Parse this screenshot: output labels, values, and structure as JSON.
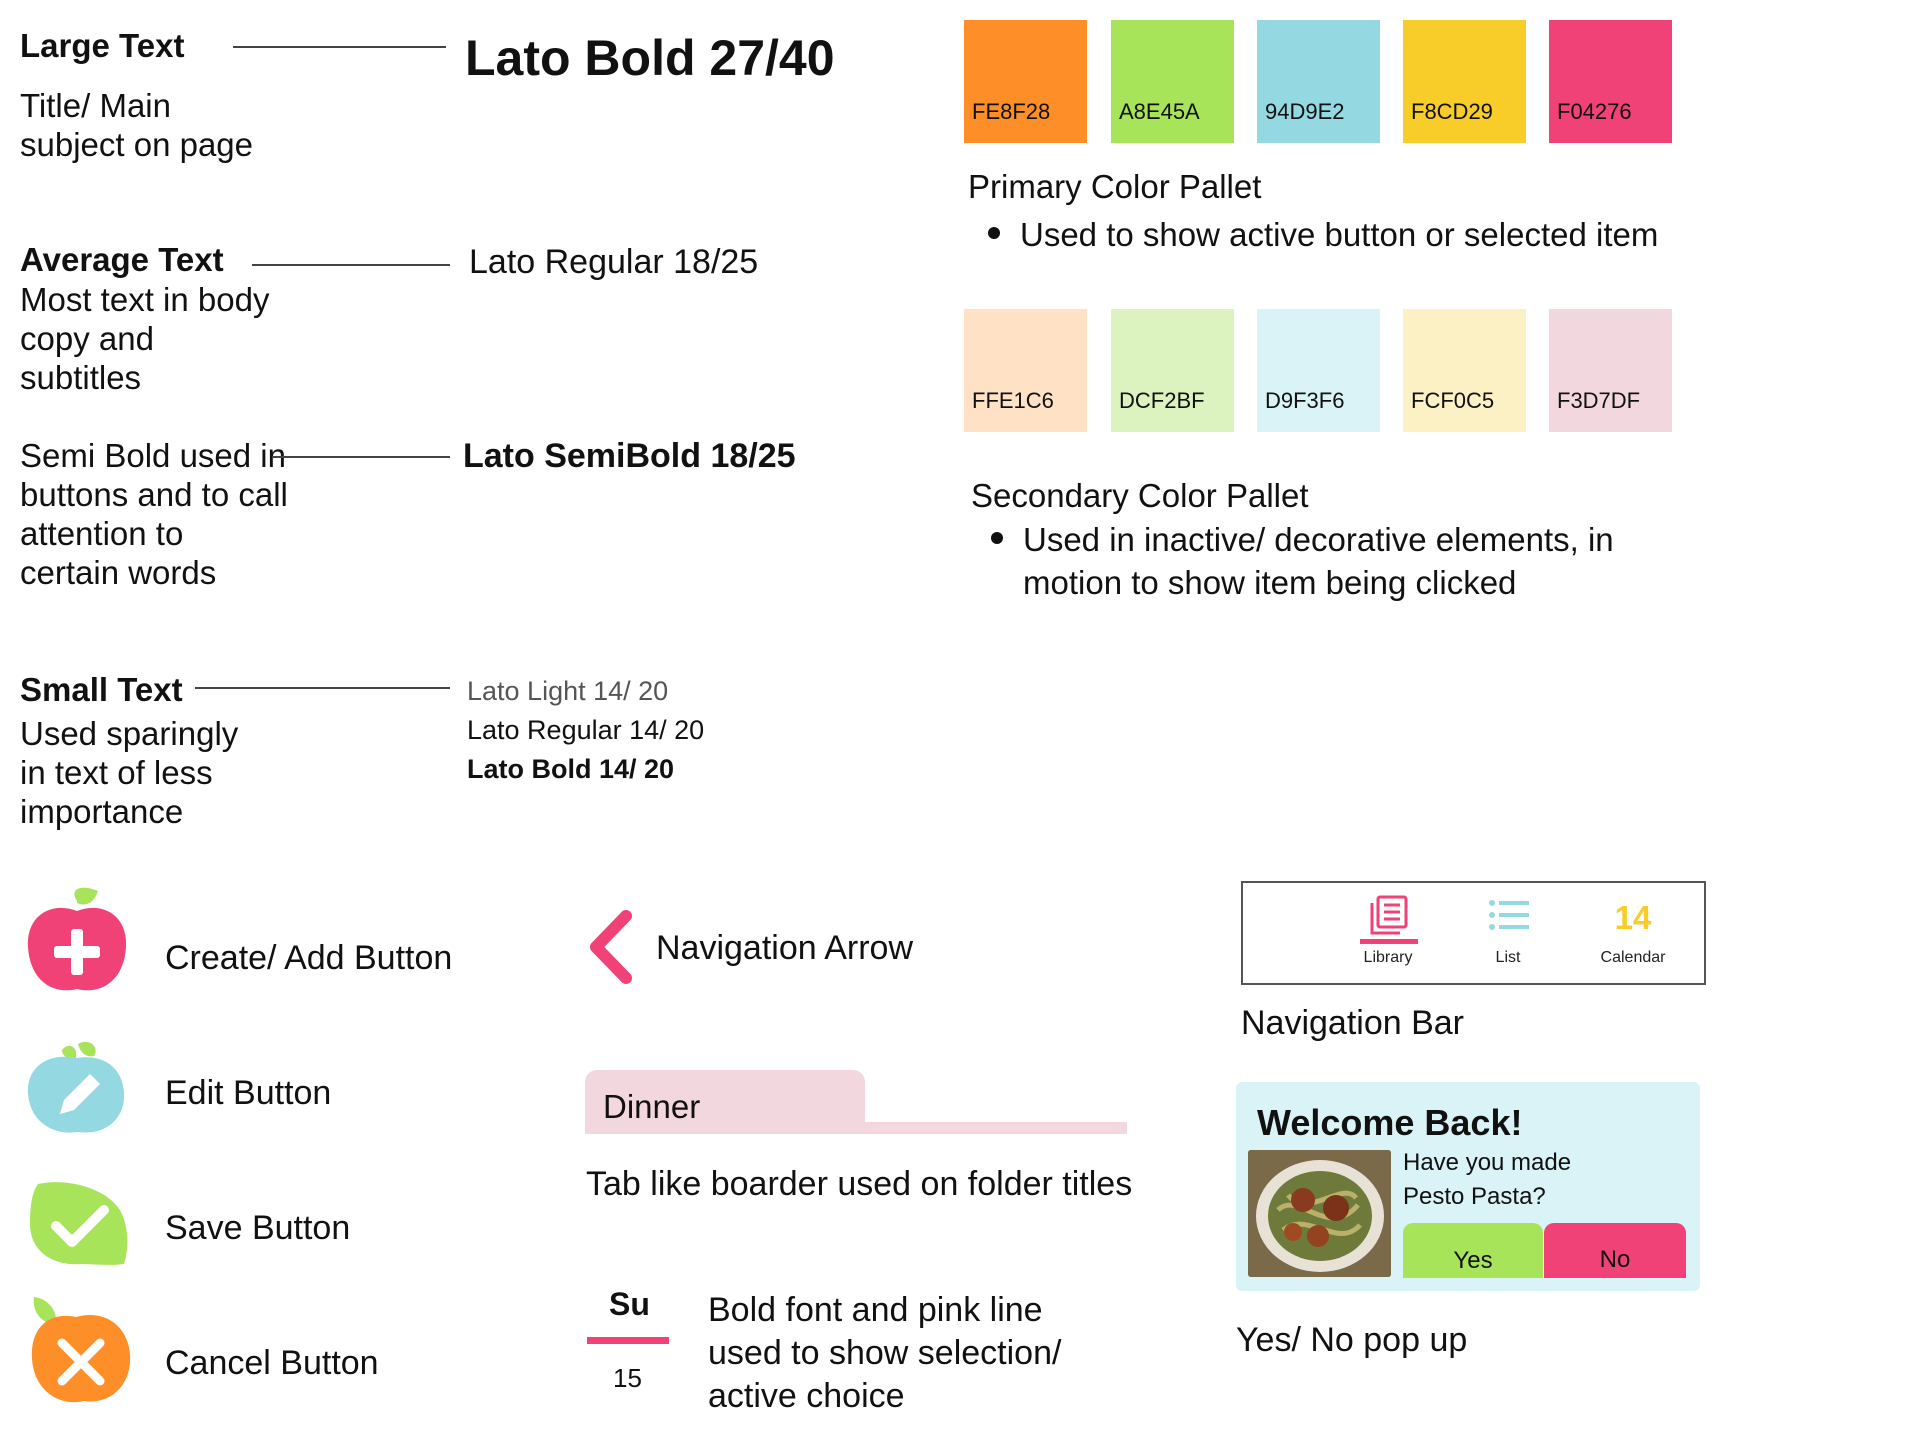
{
  "typography": {
    "large": {
      "title": "Large Text",
      "desc": "Title/ Main subject on page",
      "spec": "Lato Bold 27/40"
    },
    "average": {
      "title": "Average Text",
      "desc": "Most text in body copy and subtitles",
      "spec": "Lato Regular 18/25"
    },
    "semibold": {
      "desc": "Semi Bold used in buttons and to call attention to certain words",
      "spec": "Lato SemiBold 18/25"
    },
    "small": {
      "title": "Small Text",
      "desc": "Used sparingly in text of less importance",
      "spec_light": "Lato Light 14/ 20",
      "spec_regular": "Lato Regular 14/ 20",
      "spec_bold": "Lato Bold 14/ 20"
    }
  },
  "primary_palette": {
    "heading": "Primary Color Pallet",
    "bullet": "Used to show active button or selected item",
    "swatches": [
      {
        "hex": "FE8F28",
        "color": "#FE8F28"
      },
      {
        "hex": "A8E45A",
        "color": "#A8E45A"
      },
      {
        "hex": "94D9E2",
        "color": "#94D9E2"
      },
      {
        "hex": "F8CD29",
        "color": "#F8CD29"
      },
      {
        "hex": "F04276",
        "color": "#F04276"
      }
    ]
  },
  "secondary_palette": {
    "heading": "Secondary Color Pallet",
    "bullet_line1": "Used in inactive/ decorative elements, in",
    "bullet_line2": "motion to show item being clicked",
    "swatches": [
      {
        "hex": "FFE1C6",
        "color": "#FFE1C6"
      },
      {
        "hex": "DCF2BF",
        "color": "#DCF2BF"
      },
      {
        "hex": "D9F3F6",
        "color": "#D9F3F6"
      },
      {
        "hex": "FCF0C5",
        "color": "#FCF0C5"
      },
      {
        "hex": "F3D7DF",
        "color": "#F3D7DF"
      }
    ]
  },
  "buttons": {
    "create": {
      "label": "Create/ Add Button",
      "icon": "plus-apple-icon"
    },
    "edit": {
      "label": "Edit Button",
      "icon": "pencil-berry-icon"
    },
    "save": {
      "label": "Save Button",
      "icon": "check-lime-icon"
    },
    "cancel": {
      "label": "Cancel Button",
      "icon": "x-orange-icon"
    }
  },
  "navigation_arrow": {
    "label": "Navigation Arrow",
    "icon": "chevron-left-icon"
  },
  "tab": {
    "tab_label": "Dinner",
    "caption": "Tab like boarder used on folder titles"
  },
  "selection": {
    "day": "Su",
    "date": "15",
    "caption_line1": "Bold font and pink line",
    "caption_line2": "used to show selection/",
    "caption_line3": "active choice"
  },
  "navbar": {
    "caption": "Navigation Bar",
    "items": [
      {
        "label": "Library",
        "icon": "library-icon"
      },
      {
        "label": "List",
        "icon": "list-icon"
      },
      {
        "label": "Calendar",
        "icon": "calendar-icon",
        "number": "14"
      }
    ]
  },
  "popup": {
    "title": "Welcome Back!",
    "question_line1": "Have you made",
    "question_line2": "Pesto Pasta?",
    "yes": "Yes",
    "no": "No",
    "caption": "Yes/ No pop up"
  },
  "colors": {
    "pink": "#F04276",
    "green": "#A8E45A",
    "blue": "#94D9E2",
    "yellow": "#F8CD29",
    "orange": "#FE8F28"
  }
}
